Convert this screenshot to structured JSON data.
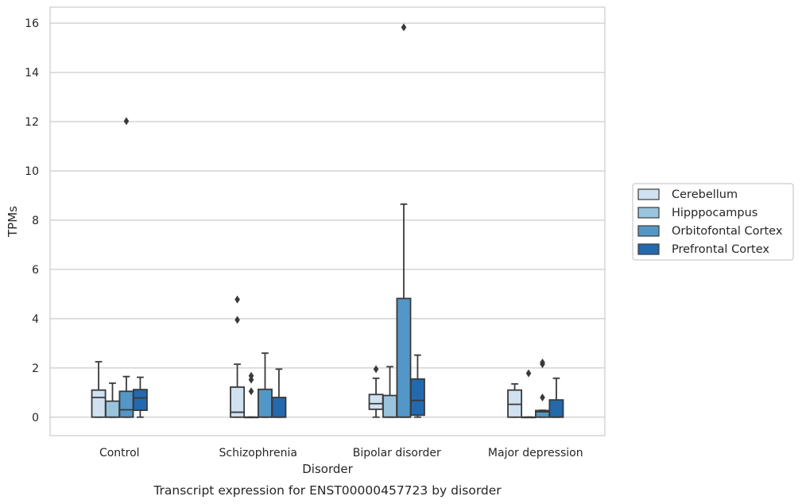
{
  "chart_data": {
    "type": "box",
    "caption": "Transcript expression for ENST00000457723 by disorder",
    "xlabel": "Disorder",
    "ylabel": "TPMs",
    "ylim": [
      -0.75,
      16.65
    ],
    "yticks": [
      0,
      2,
      4,
      6,
      8,
      10,
      12,
      14,
      16
    ],
    "grid": "horizontal",
    "legend_position": "right",
    "categories": [
      "Control",
      "Schizophrenia",
      "Bipolar disorder",
      "Major depression"
    ],
    "series": [
      {
        "name": "Cerebellum",
        "color": "#d0e1f2",
        "boxes": [
          {
            "q1": 0,
            "median": 0.8,
            "q3": 1.1,
            "whisker_low": 0,
            "whisker_high": 2.25,
            "outliers": []
          },
          {
            "q1": 0,
            "median": 0.2,
            "q3": 1.22,
            "whisker_low": 0,
            "whisker_high": 2.15,
            "outliers": [
              4.78,
              3.95
            ]
          },
          {
            "q1": 0.32,
            "median": 0.55,
            "q3": 0.92,
            "whisker_low": 0,
            "whisker_high": 1.58,
            "outliers": [
              1.95
            ]
          },
          {
            "q1": 0,
            "median": 0.52,
            "q3": 1.1,
            "whisker_low": 0,
            "whisker_high": 1.35,
            "outliers": []
          }
        ]
      },
      {
        "name": "Hipppocampus",
        "color": "#9ac3de",
        "boxes": [
          {
            "q1": 0,
            "median": 0,
            "q3": 0.65,
            "whisker_low": 0,
            "whisker_high": 1.38,
            "outliers": []
          },
          {
            "q1": 0,
            "median": 0,
            "q3": 0,
            "whisker_low": 0,
            "whisker_high": 0,
            "outliers": [
              1.68,
              1.52,
              1.05
            ]
          },
          {
            "q1": 0,
            "median": 0,
            "q3": 0.88,
            "whisker_low": 0,
            "whisker_high": 2.05,
            "outliers": []
          },
          {
            "q1": 0,
            "median": 0,
            "q3": 0,
            "whisker_low": 0,
            "whisker_high": 0,
            "outliers": [
              1.78
            ]
          }
        ]
      },
      {
        "name": "Orbitofontal Cortex",
        "color": "#5397c6",
        "boxes": [
          {
            "q1": 0,
            "median": 0.3,
            "q3": 1.05,
            "whisker_low": 0,
            "whisker_high": 1.65,
            "outliers": [
              12.02
            ]
          },
          {
            "q1": 0,
            "median": 0,
            "q3": 1.13,
            "whisker_low": 0,
            "whisker_high": 2.6,
            "outliers": []
          },
          {
            "q1": 0,
            "median": 0,
            "q3": 4.82,
            "whisker_low": 0,
            "whisker_high": 8.65,
            "outliers": [
              15.83
            ]
          },
          {
            "q1": 0,
            "median": 0.22,
            "q3": 0.27,
            "whisker_low": 0,
            "whisker_high": 0.28,
            "outliers": [
              2.22,
              2.15,
              0.8
            ]
          }
        ]
      },
      {
        "name": "Prefrontal Cortex",
        "color": "#2369ad",
        "boxes": [
          {
            "q1": 0.28,
            "median": 0.78,
            "q3": 1.12,
            "whisker_low": 0,
            "whisker_high": 1.62,
            "outliers": []
          },
          {
            "q1": 0,
            "median": 0,
            "q3": 0.8,
            "whisker_low": 0,
            "whisker_high": 1.95,
            "outliers": []
          },
          {
            "q1": 0.08,
            "median": 0.68,
            "q3": 1.55,
            "whisker_low": 0,
            "whisker_high": 2.52,
            "outliers": []
          },
          {
            "q1": 0,
            "median": 0,
            "q3": 0.7,
            "whisker_low": 0,
            "whisker_high": 1.58,
            "outliers": []
          }
        ]
      }
    ]
  }
}
